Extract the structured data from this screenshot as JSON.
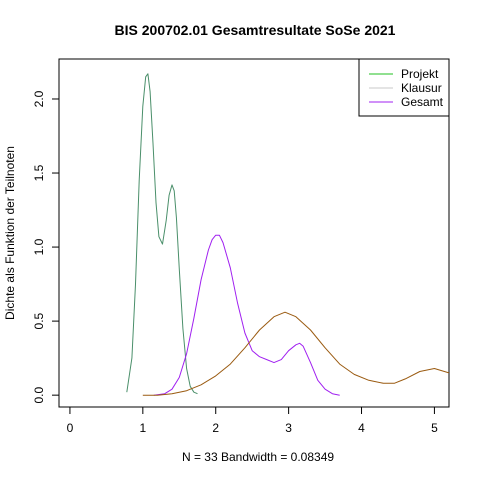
{
  "chart_data": {
    "type": "line",
    "title": "BIS 200702.01 Gesamtresultate SoSe 2021",
    "xlabel": "N = 33   Bandwidth = 0.08349",
    "ylabel": "Dichte als Funktion der Teilnoten",
    "xlim": [
      -0.15,
      5.2
    ],
    "ylim": [
      -0.08,
      2.27
    ],
    "x_ticks": [
      0,
      1,
      2,
      3,
      4,
      5
    ],
    "y_ticks": [
      0.0,
      0.5,
      1.0,
      1.5,
      2.0
    ],
    "y_tick_labels": [
      "0.0",
      "0.5",
      "1.0",
      "1.5",
      "2.0"
    ],
    "grid": false,
    "legend_position": "top-right",
    "legend": [
      {
        "name": "Projekt",
        "color": "#22c022"
      },
      {
        "name": "Klausur",
        "color": "#c8c8c8"
      },
      {
        "name": "Gesamt",
        "color": "#a020f0"
      }
    ],
    "series": [
      {
        "name": "Projekt",
        "color": "#4a8f6a",
        "x": [
          0.78,
          0.85,
          0.9,
          0.95,
          1.0,
          1.04,
          1.07,
          1.1,
          1.14,
          1.18,
          1.22,
          1.27,
          1.32,
          1.36,
          1.4,
          1.43,
          1.46,
          1.5,
          1.55,
          1.6,
          1.65,
          1.7,
          1.75
        ],
        "y": [
          0.02,
          0.25,
          0.75,
          1.45,
          1.95,
          2.15,
          2.17,
          2.05,
          1.7,
          1.3,
          1.07,
          1.02,
          1.18,
          1.35,
          1.42,
          1.38,
          1.2,
          0.85,
          0.45,
          0.18,
          0.06,
          0.02,
          0.01
        ]
      },
      {
        "name": "Gesamt",
        "color": "#a020f0",
        "x": [
          1.15,
          1.3,
          1.4,
          1.5,
          1.6,
          1.7,
          1.8,
          1.9,
          1.95,
          2.0,
          2.05,
          2.1,
          2.2,
          2.3,
          2.4,
          2.5,
          2.6,
          2.7,
          2.8,
          2.9,
          3.0,
          3.1,
          3.15,
          3.2,
          3.3,
          3.4,
          3.5,
          3.6,
          3.7
        ],
        "y": [
          0.0,
          0.01,
          0.04,
          0.12,
          0.28,
          0.52,
          0.78,
          0.98,
          1.05,
          1.08,
          1.08,
          1.03,
          0.86,
          0.62,
          0.42,
          0.3,
          0.26,
          0.24,
          0.22,
          0.24,
          0.3,
          0.34,
          0.35,
          0.33,
          0.22,
          0.1,
          0.04,
          0.01,
          0.0
        ]
      },
      {
        "name": "Klausur",
        "color": "#9a5a10",
        "x": [
          1.0,
          1.2,
          1.4,
          1.6,
          1.8,
          2.0,
          2.2,
          2.4,
          2.6,
          2.8,
          2.95,
          3.1,
          3.3,
          3.5,
          3.7,
          3.9,
          4.1,
          4.3,
          4.45,
          4.6,
          4.8,
          5.0,
          5.2
        ],
        "y": [
          0.0,
          0.0,
          0.01,
          0.03,
          0.07,
          0.13,
          0.21,
          0.32,
          0.44,
          0.53,
          0.56,
          0.53,
          0.44,
          0.32,
          0.21,
          0.14,
          0.1,
          0.08,
          0.08,
          0.11,
          0.16,
          0.18,
          0.15
        ]
      }
    ]
  }
}
